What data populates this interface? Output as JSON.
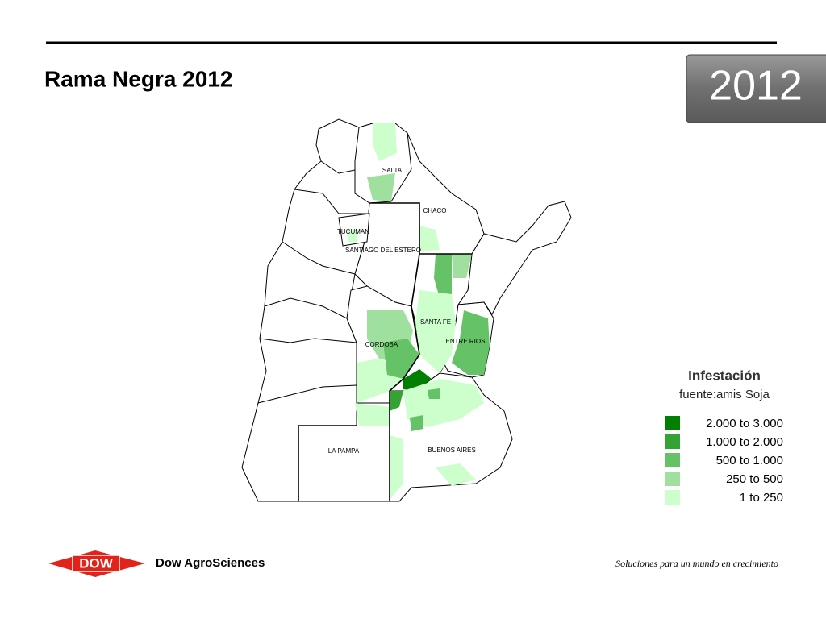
{
  "header": {
    "title": "Rama Negra 2012",
    "year": "2012"
  },
  "map": {
    "labels": [
      "SALTA",
      "CHACO",
      "TUCUMAN",
      "SANTIAGO DEL ESTERO",
      "SANTA FE",
      "ENTRE RIOS",
      "CORDOBA",
      "LA PAMPA",
      "BUENOS AIRES"
    ]
  },
  "legend": {
    "title": "Infestación",
    "subtitle": "fuente:amis Soja",
    "items": [
      {
        "label": "2.000 to 3.000",
        "color": "#008000"
      },
      {
        "label": "1.000 to 2.000",
        "color": "#33a333"
      },
      {
        "label": "500 to 1.000",
        "color": "#66c266"
      },
      {
        "label": "250 to 500",
        "color": "#9fe09f"
      },
      {
        "label": "1 to 250",
        "color": "#ccffcc"
      }
    ]
  },
  "footer": {
    "logo": "DOW",
    "brand": "Dow AgroSciences",
    "tagline": "Soluciones para un mundo en crecimiento"
  }
}
